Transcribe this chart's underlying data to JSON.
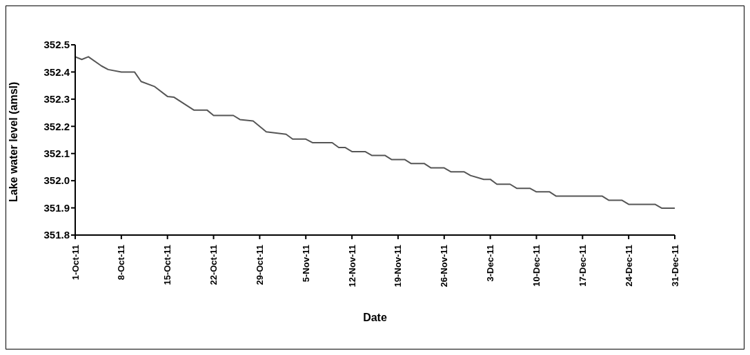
{
  "chart_data": {
    "type": "line",
    "xlabel": "Date",
    "ylabel": "Lake water level (amsl)",
    "x": [
      "--10-01",
      "--10-02",
      "--10-03",
      "--10-05",
      "--10-06",
      "--10-08",
      "--10-10",
      "--10-11",
      "--10-13",
      "--10-15",
      "--10-16",
      "--10-19",
      "--10-21",
      "--10-22",
      "--10-25",
      "--10-26",
      "--10-28",
      "--10-30",
      "--11-02",
      "--11-03",
      "--11-05",
      "--11-06",
      "--11-09",
      "--11-10",
      "--11-11",
      "--11-12",
      "--11-14",
      "--11-15",
      "--11-17",
      "--11-18",
      "--11-20",
      "--11-21",
      "--11-23",
      "--11-24",
      "--11-26",
      "--11-27",
      "--11-29",
      "--11-30",
      "--12-02",
      "--12-03",
      "--12-04",
      "--12-06",
      "--12-07",
      "--12-09",
      "--12-10",
      "--12-12",
      "--12-13",
      "--12-20",
      "--12-21",
      "--12-23",
      "--12-24",
      "--12-28",
      "--12-29",
      "--12-31"
    ],
    "series": [
      {
        "color": "#555555",
        "values": [
          352.456,
          352.446,
          352.456,
          352.422,
          352.409,
          352.4,
          352.4,
          352.365,
          352.347,
          352.31,
          352.307,
          352.26,
          352.26,
          352.24,
          352.24,
          352.225,
          352.22,
          352.18,
          352.171,
          352.153,
          352.153,
          352.14,
          352.14,
          352.122,
          352.122,
          352.107,
          352.107,
          352.093,
          352.093,
          352.078,
          352.078,
          352.063,
          352.063,
          352.047,
          352.047,
          352.033,
          352.033,
          352.019,
          352.005,
          352.005,
          351.987,
          351.987,
          351.972,
          351.972,
          351.959,
          351.959,
          351.943,
          351.943,
          351.928,
          351.928,
          351.913,
          351.913,
          351.899,
          351.899
        ]
      }
    ],
    "xlim": [
      "--10-01",
      "--12-31"
    ],
    "xticks": [
      {
        "value": "--10-01",
        "label": "1-Oct-11"
      },
      {
        "value": "--10-08",
        "label": "8-Oct-11"
      },
      {
        "value": "--10-15",
        "label": "15-Oct-11"
      },
      {
        "value": "--10-22",
        "label": "22-Oct-11"
      },
      {
        "value": "--10-29",
        "label": "29-Oct-11"
      },
      {
        "value": "--11-05",
        "label": "5-Nov-11"
      },
      {
        "value": "--11-12",
        "label": "12-Nov-11"
      },
      {
        "value": "--11-19",
        "label": "19-Nov-11"
      },
      {
        "value": "--11-26",
        "label": "26-Nov-11"
      },
      {
        "value": "--12-03",
        "label": "3-Dec-11"
      },
      {
        "value": "--12-10",
        "label": "10-Dec-11"
      },
      {
        "value": "--12-17",
        "label": "17-Dec-11"
      },
      {
        "value": "--12-24",
        "label": "24-Dec-11"
      },
      {
        "value": "--12-31",
        "label": "31-Dec-11"
      }
    ],
    "ylim": [
      351.8,
      352.5
    ],
    "yticks": [
      351.8,
      351.9,
      {
        "value": 352,
        "label": "352.0"
      },
      352.1,
      352.2,
      352.3,
      352.4,
      352.5
    ]
  }
}
